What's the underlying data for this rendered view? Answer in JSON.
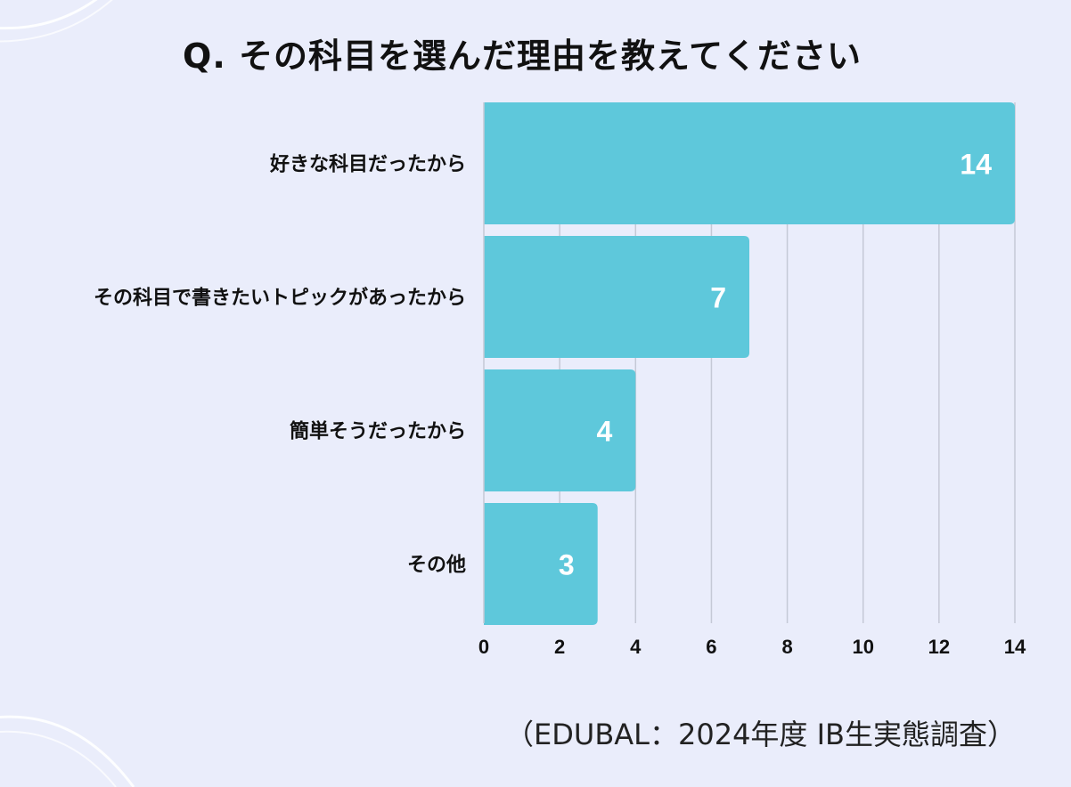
{
  "title": "Q. その科目を選んだ理由を教えてください",
  "source": "（EDUBAL：2024年度 IB生実態調査）",
  "colors": {
    "background": "#eaedfb",
    "bar": "#5ec8db",
    "gridline": "#c5c9d6",
    "text": "#111111"
  },
  "chart_data": {
    "type": "bar",
    "orientation": "horizontal",
    "title": "Q. その科目を選んだ理由を教えてください",
    "categories": [
      "好きな科目だったから",
      "その科目で書きたいトピックがあったから",
      "簡単そうだったから",
      "その他"
    ],
    "values": [
      14,
      7,
      4,
      3
    ],
    "xlim": [
      0,
      14
    ],
    "xticks": [
      "0",
      "2",
      "4",
      "6",
      "8",
      "10",
      "12",
      "14"
    ],
    "data_labels": [
      "14",
      "7",
      "4",
      "3"
    ],
    "grid": true
  }
}
